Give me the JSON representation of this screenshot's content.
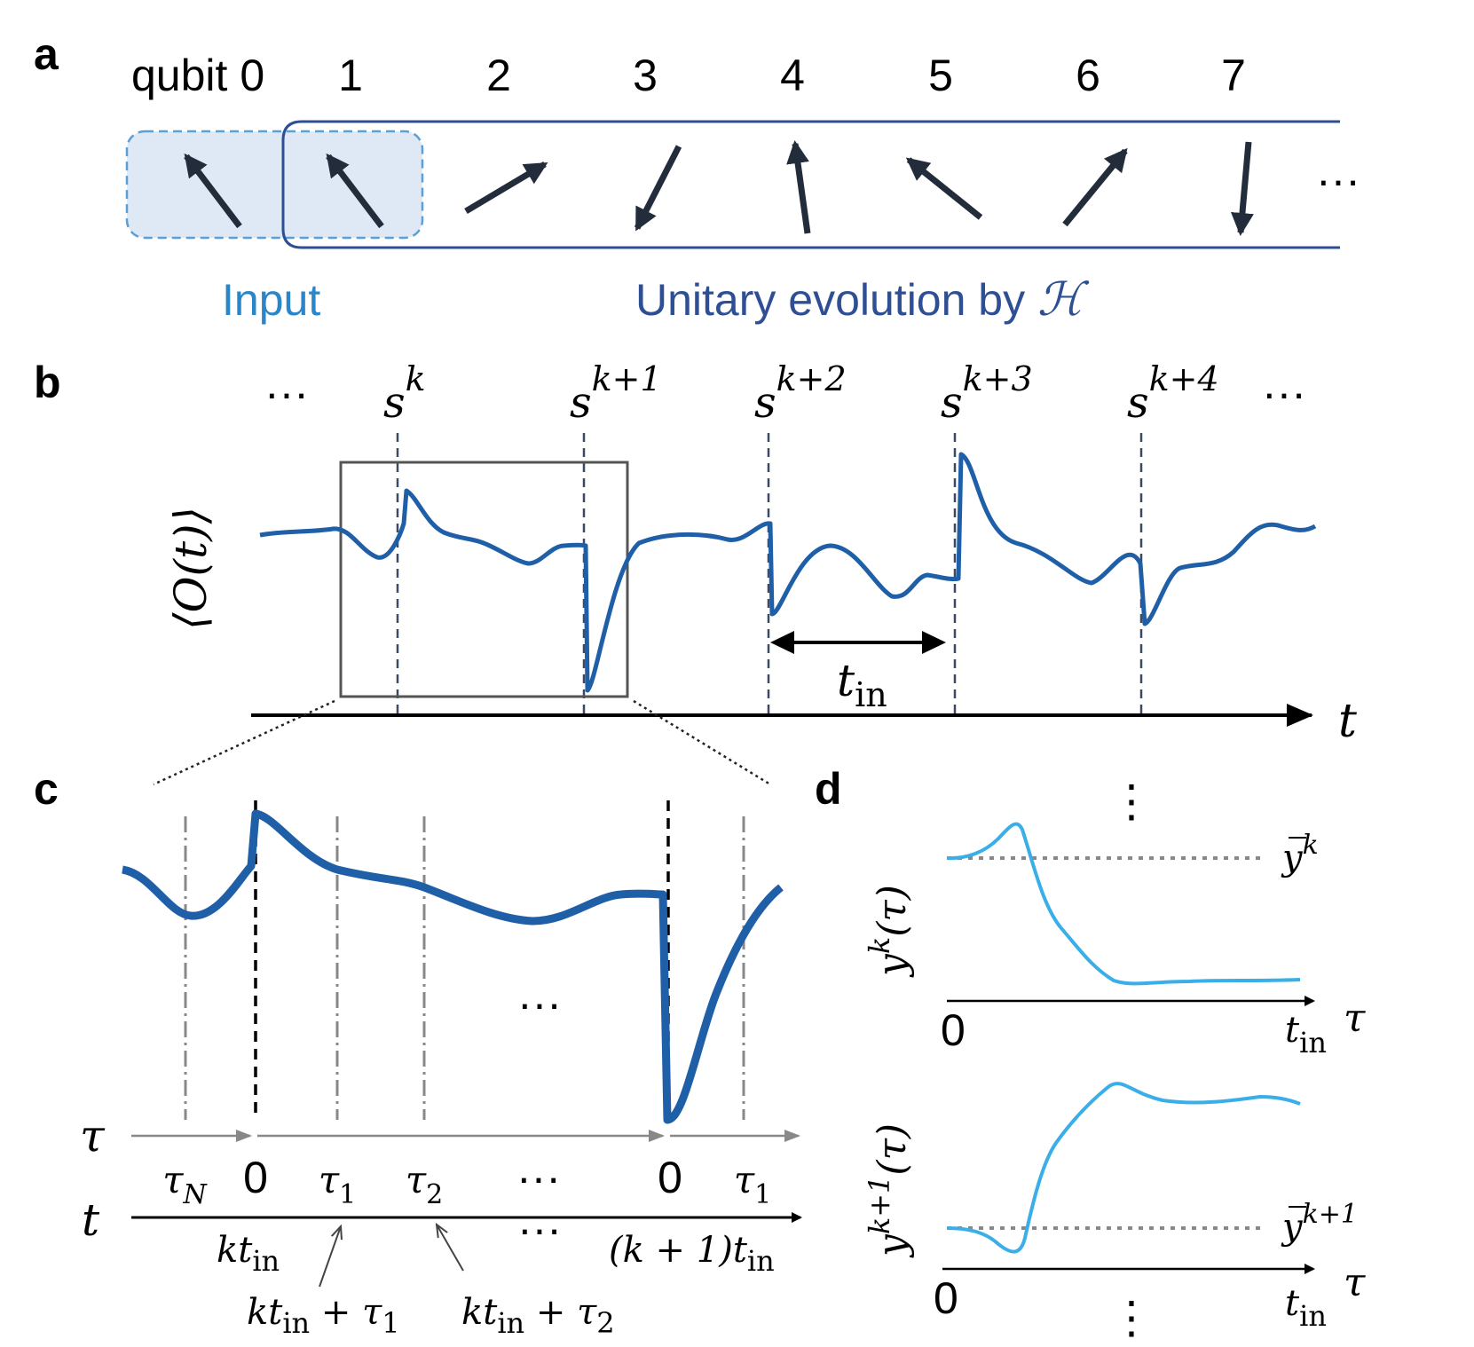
{
  "colors": {
    "input_blue": "#2a86c8",
    "evolution_blue": "#2f4f95",
    "curve_blue": "#1f5fa8",
    "light_curve": "#3aaee8",
    "arrow_dark": "#232c3a",
    "input_fill": "#dbe7f5"
  },
  "panel_a": {
    "label": "a",
    "qubit_label": "qubit 0",
    "qubit_numbers": [
      "1",
      "2",
      "3",
      "4",
      "5",
      "6",
      "7"
    ],
    "ellipsis": "···",
    "input_label": "Input",
    "evolution_label": "Unitary evolution by ",
    "hamiltonian_symbol": "ℋ",
    "spin_icon": "spin-arrow-icon"
  },
  "panel_b": {
    "label": "b",
    "y_label": "⟨O(t)⟩",
    "x_label": "t",
    "left_ellipsis": "···",
    "right_ellipsis": "···",
    "inputs": [
      {
        "base": "s",
        "sup": "k"
      },
      {
        "base": "s",
        "sup": "k+1"
      },
      {
        "base": "s",
        "sup": "k+2"
      },
      {
        "base": "s",
        "sup": "k+3"
      },
      {
        "base": "s",
        "sup": "k+4"
      }
    ],
    "interval_base": "t",
    "interval_sub": "in"
  },
  "panel_c": {
    "label": "c",
    "tau_axis_label": "τ",
    "t_axis_label": "t",
    "tau_ticks": [
      {
        "base": "τ",
        "sub": "N"
      },
      {
        "base": "0",
        "sub": ""
      },
      {
        "base": "τ",
        "sub": "1"
      },
      {
        "base": "τ",
        "sub": "2"
      },
      {
        "base": "···",
        "sub": ""
      },
      {
        "base": "0",
        "sub": ""
      },
      {
        "base": "τ",
        "sub": "1"
      }
    ],
    "middle_ellipsis": "···",
    "t_ellipsis": "···",
    "t_tick_k": {
      "base": "kt",
      "sub": "in"
    },
    "t_tick_k1": {
      "base": "(k + 1)t",
      "sub": "in"
    },
    "annotation_1": {
      "base": "kt",
      "sub": "in",
      "tail": " + τ",
      "tail_sub": "1"
    },
    "annotation_2": {
      "base": "kt",
      "sub": "in",
      "tail": " + τ",
      "tail_sub": "2"
    }
  },
  "panel_d": {
    "label": "d",
    "top_ellipsis": "⋮",
    "bottom_ellipsis": "⋮",
    "plot1": {
      "y_base": "y",
      "y_sup": "k",
      "y_arg": "(τ)",
      "mean_base": "y",
      "mean_sup": "k",
      "x_zero": "0",
      "x_end_base": "t",
      "x_end_sub": "in",
      "x_label": "τ"
    },
    "plot2": {
      "y_base": "y",
      "y_sup": "k+1",
      "y_arg": "(τ)",
      "mean_base": "y",
      "mean_sup": "k+1",
      "x_zero": "0",
      "x_end_base": "t",
      "x_end_sub": "in",
      "x_label": "τ"
    }
  }
}
